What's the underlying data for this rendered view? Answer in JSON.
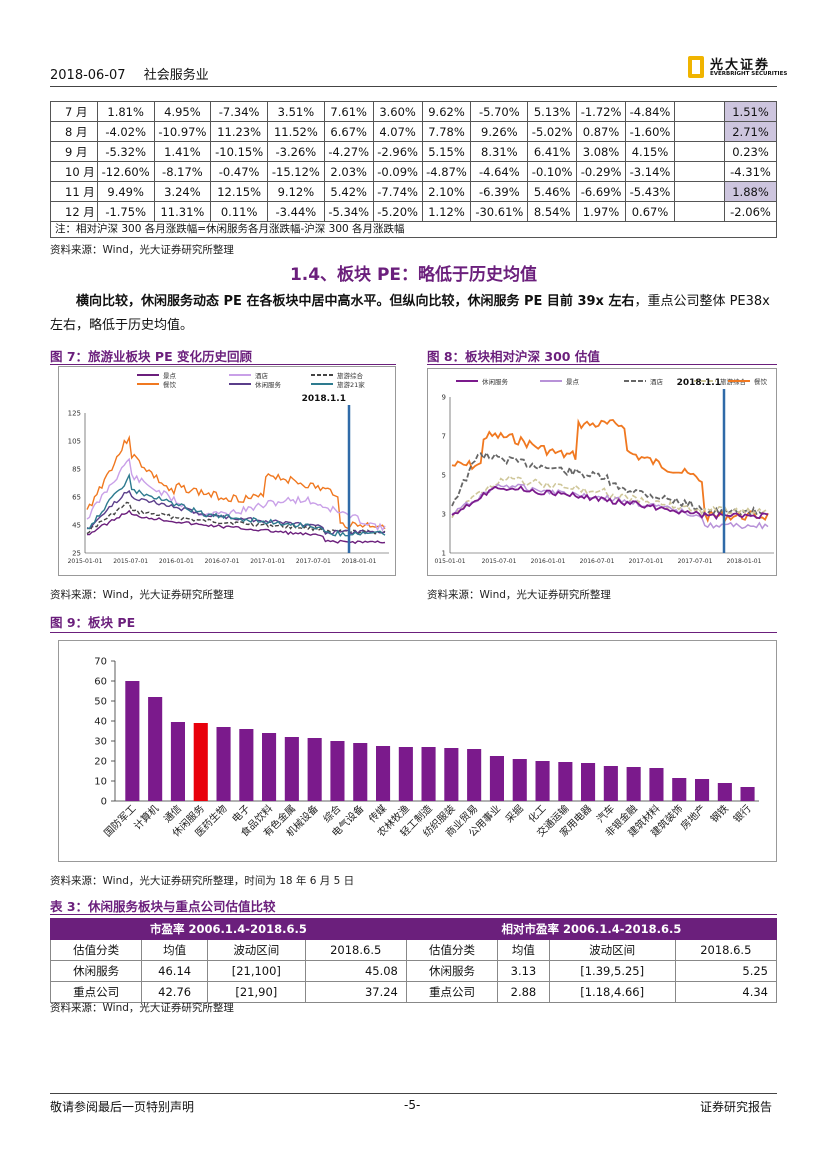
{
  "header": {
    "date": "2018-06-07",
    "industry": "社会服务业",
    "logo_cn": "光大证券",
    "logo_en": "EVERBRIGHT SECURITIES"
  },
  "monthly_table": {
    "rows": [
      {
        "month": "7 月",
        "values": [
          "1.81%",
          "4.95%",
          "-7.34%",
          "3.51%",
          "7.61%",
          "3.60%",
          "9.62%",
          "-5.70%",
          "5.13%",
          "-1.72%",
          "-4.84%"
        ],
        "relative": "1.51%",
        "highlight": true
      },
      {
        "month": "8 月",
        "values": [
          "-4.02%",
          "-10.97%",
          "11.23%",
          "11.52%",
          "6.67%",
          "4.07%",
          "7.78%",
          "9.26%",
          "-5.02%",
          "0.87%",
          "-1.60%"
        ],
        "relative": "2.71%",
        "highlight": true
      },
      {
        "month": "9 月",
        "values": [
          "-5.32%",
          "1.41%",
          "-10.15%",
          "-3.26%",
          "-4.27%",
          "-2.96%",
          "5.15%",
          "8.31%",
          "6.41%",
          "3.08%",
          "4.15%"
        ],
        "relative": "0.23%",
        "highlight": false
      },
      {
        "month": "10 月",
        "values": [
          "-12.60%",
          "-8.17%",
          "-0.47%",
          "-15.12%",
          "2.03%",
          "-0.09%",
          "-4.87%",
          "-4.64%",
          "-0.10%",
          "-0.29%",
          "-3.14%"
        ],
        "relative": "-4.31%",
        "highlight": false
      },
      {
        "month": "11 月",
        "values": [
          "9.49%",
          "3.24%",
          "12.15%",
          "9.12%",
          "5.42%",
          "-7.74%",
          "2.10%",
          "-6.39%",
          "5.46%",
          "-6.69%",
          "-5.43%"
        ],
        "relative": "1.88%",
        "highlight": true
      },
      {
        "month": "12 月",
        "values": [
          "-1.75%",
          "11.31%",
          "0.11%",
          "-3.44%",
          "-5.34%",
          "-5.20%",
          "1.12%",
          "-30.61%",
          "8.54%",
          "1.97%",
          "0.67%"
        ],
        "relative": "-2.06%",
        "highlight": false
      }
    ],
    "note": "注：相对沪深 300 各月涨跌幅=休闲服务各月涨跌幅-沪深 300 各月涨跌幅"
  },
  "source_text": "资料来源：Wind，光大证券研究所整理",
  "section": {
    "title": "1.4、板块 PE：略低于历史均值"
  },
  "paragraph": {
    "bold1": "横向比较，休闲服务动态 PE 在各板块中居中高水平。但纵向比较，休闲服务 PE 目前 39x 左右",
    "rest": "，重点公司整体 PE38x 左右，略低于历史均值。"
  },
  "fig7": {
    "title": "图 7：旅游业板块 PE 变化历史回顾",
    "annotation": "2018.1.1",
    "legend": [
      {
        "name": "景点",
        "color": "#6b1f7c"
      },
      {
        "name": "酒店",
        "color": "#c9a0e8"
      },
      {
        "name": "旅游综合",
        "color": "#444444"
      },
      {
        "name": "餐饮",
        "color": "#f07820"
      },
      {
        "name": "休闲服务",
        "color": "#5a3d8a"
      },
      {
        "name": "旅游21家",
        "color": "#2e7b8f"
      }
    ],
    "yticks": [
      "125",
      "105",
      "85",
      "65",
      "45",
      "25"
    ],
    "xticks": [
      "2015-01-01",
      "2015-07-01",
      "2016-01-01",
      "2016-07-01",
      "2017-01-01",
      "2017-07-01",
      "2018-01-01"
    ]
  },
  "fig8": {
    "title": "图 8：板块相对沪深 300 估值",
    "annotation": "2018.1.1",
    "legend": [
      {
        "name": "休闲服务",
        "color": "#7b1a8c"
      },
      {
        "name": "景点",
        "color": "#b892d8"
      },
      {
        "name": "酒店",
        "color": "#666666"
      },
      {
        "name": "旅游综合",
        "color": "#cfc79a"
      },
      {
        "name": "餐饮",
        "color": "#f07820"
      }
    ],
    "yticks": [
      "9",
      "7",
      "5",
      "3",
      "1"
    ],
    "xticks": [
      "015-01-01",
      "2015-07-01",
      "2016-01-01",
      "2016-07-01",
      "2017-01-01",
      "2017-07-01",
      "2018-01-01"
    ]
  },
  "fig9": {
    "title": "图 9：板块 PE",
    "source": "资料来源：Wind，光大证券研究所整理，时间为 18 年 6 月 5 日"
  },
  "chart_data": {
    "type": "bar",
    "categories": [
      "国防军工",
      "计算机",
      "通信",
      "休闲服务",
      "医药生物",
      "电子",
      "食品饮料",
      "有色金属",
      "机械设备",
      "综合",
      "电气设备",
      "传媒",
      "农林牧渔",
      "轻工制造",
      "纺织服装",
      "商业贸易",
      "公用事业",
      "采掘",
      "化工",
      "交通运输",
      "家用电器",
      "汽车",
      "非银金融",
      "建筑材料",
      "建筑装饰",
      "房地产",
      "钢铁",
      "银行"
    ],
    "values": [
      60,
      52,
      39.5,
      39,
      37,
      36,
      34,
      32,
      31.5,
      30,
      29,
      27.5,
      27,
      27,
      26.5,
      26,
      22.5,
      21,
      20,
      19.5,
      19,
      17.5,
      17,
      16.5,
      11.5,
      11,
      9,
      7
    ],
    "highlight_category": "休闲服务",
    "ylim": [
      0,
      70
    ],
    "yticks": [
      0,
      10,
      20,
      30,
      40,
      50,
      60,
      70
    ],
    "colors": {
      "default": "#7b1a8c",
      "highlight": "#e8000b"
    }
  },
  "valuation_table": {
    "title": "表 3：休闲服务板块与重点公司估值比较",
    "group1": "市盈率 2006.1.4-2018.6.5",
    "group2": "相对市盈率 2006.1.4-2018.6.5",
    "headers": [
      "估值分类",
      "均值",
      "波动区间",
      "2018.6.5",
      "估值分类",
      "均值",
      "波动区间",
      "2018.6.5"
    ],
    "rows": [
      [
        "休闲服务",
        "46.14",
        "[21,100]",
        "45.08",
        "休闲服务",
        "3.13",
        "[1.39,5.25]",
        "5.25"
      ],
      [
        "重点公司",
        "42.76",
        "[21,90]",
        "37.24",
        "重点公司",
        "2.88",
        "[1.18,4.66]",
        "4.34"
      ]
    ]
  },
  "footer": {
    "left": "敬请参阅最后一页特别声明",
    "page": "-5-",
    "right": "证券研究报告"
  }
}
